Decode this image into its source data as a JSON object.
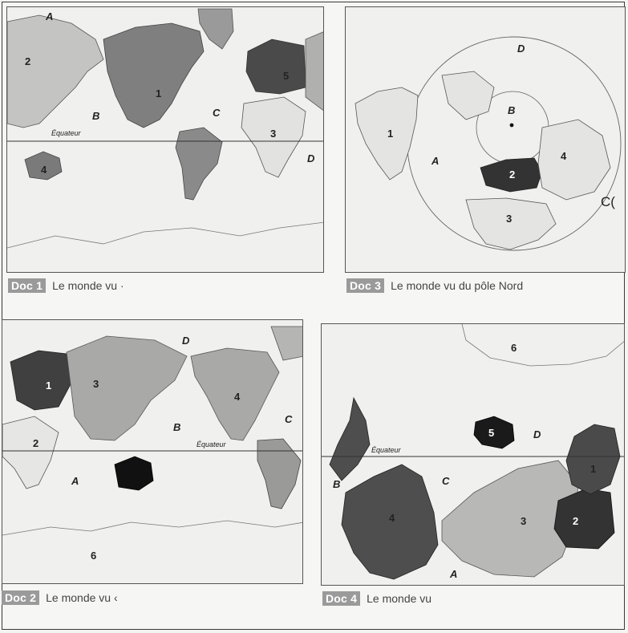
{
  "docs": {
    "doc1": {
      "badge": "Doc 1",
      "caption": "Le monde vu ·",
      "labels": {
        "A": "A",
        "B": "B",
        "C": "C",
        "D": "D",
        "n1": "1",
        "n2": "2",
        "n3": "3",
        "n4": "4",
        "n5": "5"
      },
      "equator": "Équateur"
    },
    "doc2": {
      "badge": "Doc 2",
      "caption": "Le monde vu ‹",
      "labels": {
        "A": "A",
        "B": "B",
        "C": "C",
        "D": "D",
        "n1": "1",
        "n2": "2",
        "n3": "3",
        "n4": "4",
        "n6": "6"
      },
      "equator": "Équateur"
    },
    "doc3": {
      "badge": "Doc 3",
      "caption": "Le monde vu du pôle Nord",
      "labels": {
        "A": "A",
        "B": "B",
        "C": "C(",
        "D": "D",
        "n1": "1",
        "n2": "2",
        "n3": "3",
        "n4": "4"
      }
    },
    "doc4": {
      "badge": "Doc 4",
      "caption": "Le monde vu",
      "labels": {
        "A": "A",
        "B": "B",
        "C": "C",
        "D": "D",
        "n1": "1",
        "n2": "2",
        "n3": "3",
        "n4": "4",
        "n5": "5",
        "n6": "6"
      },
      "equator": "Équateur"
    }
  },
  "colors": {
    "dark": "#3a3a3a",
    "medium": "#7c7c7c",
    "light": "#b8b8b8",
    "pale": "#e4e4e2",
    "ocean": "#f0f0ee"
  }
}
